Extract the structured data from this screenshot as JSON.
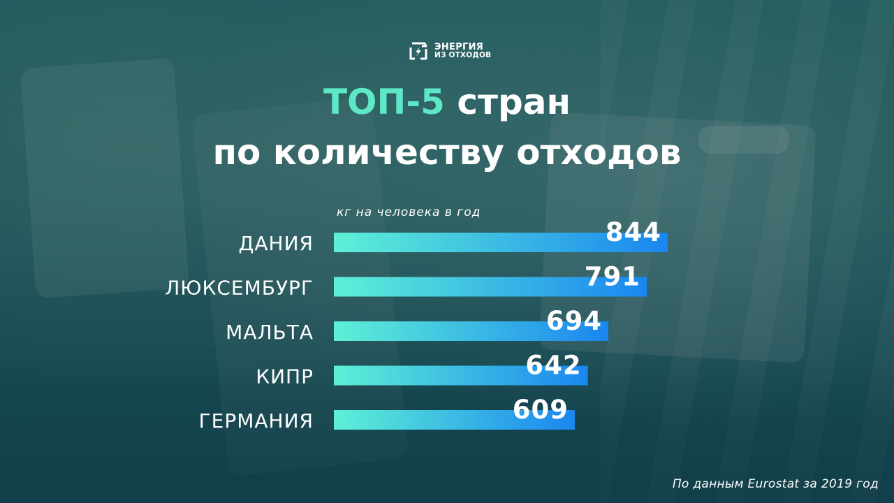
{
  "logo": {
    "icon": "recycle-bolt-icon",
    "line1": "ЭНЕРГИЯ",
    "line2": "ИЗ ОТХОДОВ"
  },
  "title": {
    "accent": "ТОП-5",
    "line1_rest": " стран",
    "line2": "по количеству отходов"
  },
  "colors": {
    "accent": "#5ee8c6",
    "bar_start": "#5ef0d6",
    "bar_end": "#1a86f0",
    "text": "#ffffff"
  },
  "chart_data": {
    "type": "bar",
    "orientation": "horizontal",
    "ylabel": "кг на человека в год",
    "categories": [
      "ДАНИЯ",
      "ЛЮКСЕМБУРГ",
      "МАЛЬТА",
      "КИПР",
      "ГЕРМАНИЯ"
    ],
    "values": [
      844,
      791,
      694,
      642,
      609
    ],
    "grid": false,
    "legend": "none"
  },
  "source": "По данным Eurostat за 2019 год"
}
